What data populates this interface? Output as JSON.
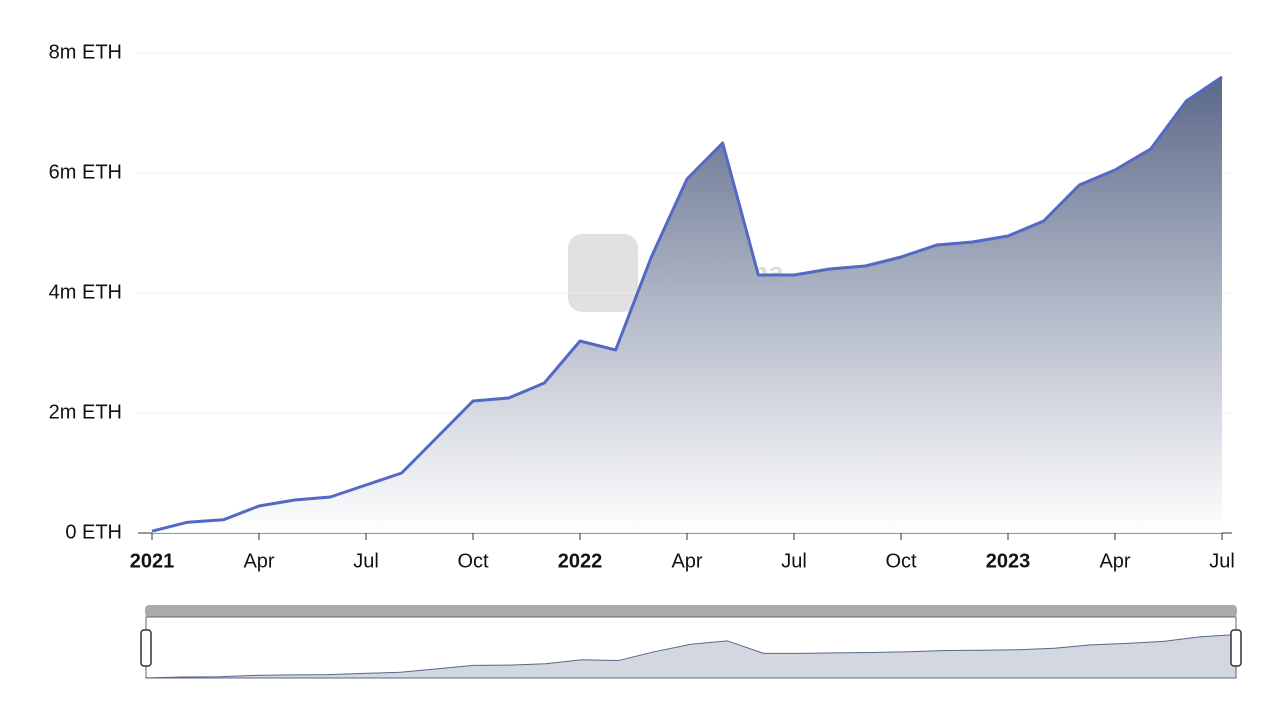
{
  "chart_data": {
    "type": "area",
    "watermark": "DefiLlama",
    "x": [
      "2021-01",
      "2021-02",
      "2021-03",
      "2021-04",
      "2021-05",
      "2021-06",
      "2021-07",
      "2021-08",
      "2021-09",
      "2021-10",
      "2021-11",
      "2021-12",
      "2022-01",
      "2022-02",
      "2022-03",
      "2022-04",
      "2022-05",
      "2022-06",
      "2022-07",
      "2022-08",
      "2022-09",
      "2022-10",
      "2022-11",
      "2022-12",
      "2023-01",
      "2023-02",
      "2023-03",
      "2023-04",
      "2023-05",
      "2023-06",
      "2023-07"
    ],
    "series": [
      {
        "color": "#5468c4",
        "values": [
          30000,
          180000,
          220000,
          450000,
          550000,
          600000,
          800000,
          1000000,
          1600000,
          2200000,
          2250000,
          2500000,
          3200000,
          3050000,
          4600000,
          5900000,
          6500000,
          4300000,
          4300000,
          4400000,
          4450000,
          4600000,
          4800000,
          4850000,
          4950000,
          5200000,
          5800000,
          6050000,
          6400000,
          7200000,
          7600000
        ]
      }
    ],
    "xlim": [
      "2021-01",
      "2023-07"
    ],
    "xticks": [
      {
        "value": "2021-01",
        "label": "2021"
      },
      {
        "value": "2021-04",
        "label": "Apr"
      },
      {
        "value": "2021-07",
        "label": "Jul"
      },
      {
        "value": "2021-10",
        "label": "Oct"
      },
      {
        "value": "2022-01",
        "label": "2022"
      },
      {
        "value": "2022-04",
        "label": "Apr"
      },
      {
        "value": "2022-07",
        "label": "Jul"
      },
      {
        "value": "2022-10",
        "label": "Oct"
      },
      {
        "value": "2023-01",
        "label": "2023"
      },
      {
        "value": "2023-04",
        "label": "Apr"
      },
      {
        "value": "2023-07",
        "label": "Jul"
      }
    ],
    "ylim": [
      0,
      8000000
    ],
    "yticks": [
      {
        "value": 0,
        "label": "0 ETH"
      },
      {
        "value": 2000000,
        "label": "2m ETH"
      },
      {
        "value": 4000000,
        "label": "4m ETH"
      },
      {
        "value": 6000000,
        "label": "6m ETH"
      },
      {
        "value": 8000000,
        "label": "8m ETH"
      }
    ],
    "grid": true
  }
}
